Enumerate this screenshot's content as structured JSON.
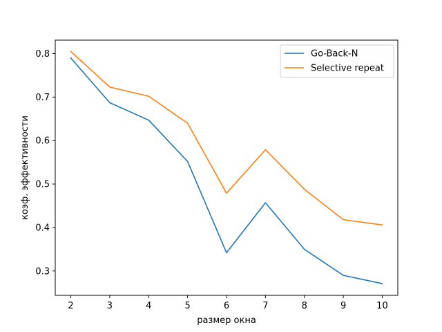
{
  "chart_data": {
    "type": "line",
    "title": "",
    "xlabel": "размер окна",
    "ylabel": "коэф. эффективности",
    "x": [
      2,
      3,
      4,
      5,
      6,
      7,
      8,
      9,
      10
    ],
    "xlim": [
      1.6,
      10.4
    ],
    "ylim": [
      0.244,
      0.831
    ],
    "xticks": [
      "2",
      "3",
      "4",
      "5",
      "6",
      "7",
      "8",
      "9",
      "10"
    ],
    "yticks": [
      "0.3",
      "0.4",
      "0.5",
      "0.6",
      "0.7",
      "0.8"
    ],
    "grid": false,
    "legend_position": "top-right",
    "series": [
      {
        "name": "Go-Back-N",
        "color": "#1f77b4",
        "values": [
          0.79,
          0.687,
          0.647,
          0.552,
          0.342,
          0.457,
          0.35,
          0.29,
          0.271
        ]
      },
      {
        "name": "Selective repeat",
        "color": "#ff7f0e",
        "values": [
          0.805,
          0.723,
          0.702,
          0.64,
          0.479,
          0.579,
          0.488,
          0.418,
          0.406
        ]
      }
    ]
  }
}
